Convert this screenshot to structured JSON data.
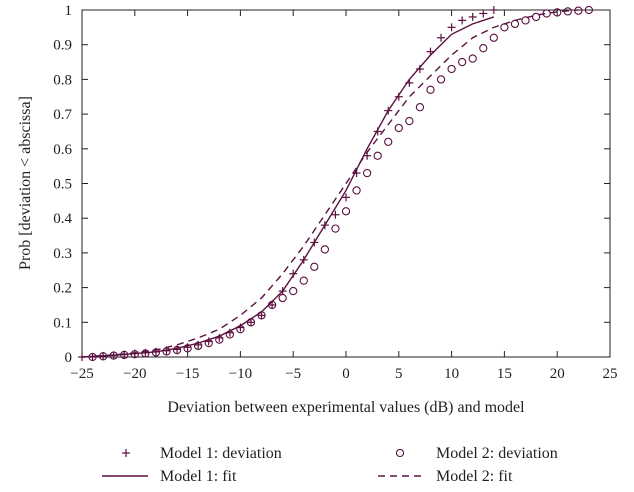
{
  "chart_data": {
    "type": "line",
    "xlabel": "Deviation between experimental values (dB) and model",
    "ylabel": "Prob [deviation < abscissa]",
    "xlim": [
      -25,
      25
    ],
    "ylim": [
      0,
      1
    ],
    "x_ticks": [
      -25,
      -20,
      -15,
      -10,
      -5,
      0,
      5,
      10,
      15,
      20,
      25
    ],
    "y_ticks": [
      0,
      0.1,
      0.2,
      0.3,
      0.4,
      0.5,
      0.6,
      0.7,
      0.8,
      0.9,
      1
    ],
    "grid": false,
    "legend_position": "bottom",
    "line_color": "#5b1040",
    "series": [
      {
        "name": "Model 1: deviation",
        "style": "marker-plus",
        "points": [
          [
            -25,
            0.0
          ],
          [
            -24,
            0.0
          ],
          [
            -23,
            0.003
          ],
          [
            -22,
            0.005
          ],
          [
            -21,
            0.007
          ],
          [
            -20,
            0.01
          ],
          [
            -19,
            0.012
          ],
          [
            -18,
            0.015
          ],
          [
            -17,
            0.018
          ],
          [
            -16,
            0.022
          ],
          [
            -15,
            0.028
          ],
          [
            -14,
            0.035
          ],
          [
            -13,
            0.045
          ],
          [
            -12,
            0.055
          ],
          [
            -11,
            0.07
          ],
          [
            -10,
            0.085
          ],
          [
            -9,
            0.1
          ],
          [
            -8,
            0.12
          ],
          [
            -7,
            0.15
          ],
          [
            -6,
            0.19
          ],
          [
            -5,
            0.24
          ],
          [
            -4,
            0.28
          ],
          [
            -3,
            0.33
          ],
          [
            -2,
            0.38
          ],
          [
            -1,
            0.41
          ],
          [
            0,
            0.46
          ],
          [
            1,
            0.53
          ],
          [
            2,
            0.58
          ],
          [
            3,
            0.65
          ],
          [
            4,
            0.71
          ],
          [
            5,
            0.75
          ],
          [
            6,
            0.79
          ],
          [
            7,
            0.83
          ],
          [
            8,
            0.88
          ],
          [
            9,
            0.92
          ],
          [
            10,
            0.95
          ],
          [
            11,
            0.97
          ],
          [
            12,
            0.98
          ],
          [
            13,
            0.99
          ],
          [
            14,
            1.0
          ]
        ]
      },
      {
        "name": "Model 2: deviation",
        "style": "marker-circle",
        "points": [
          [
            -24,
            0.0
          ],
          [
            -23,
            0.002
          ],
          [
            -22,
            0.004
          ],
          [
            -21,
            0.006
          ],
          [
            -20,
            0.008
          ],
          [
            -19,
            0.01
          ],
          [
            -18,
            0.013
          ],
          [
            -17,
            0.016
          ],
          [
            -16,
            0.02
          ],
          [
            -15,
            0.025
          ],
          [
            -14,
            0.032
          ],
          [
            -13,
            0.04
          ],
          [
            -12,
            0.05
          ],
          [
            -11,
            0.065
          ],
          [
            -10,
            0.08
          ],
          [
            -9,
            0.1
          ],
          [
            -8,
            0.12
          ],
          [
            -7,
            0.15
          ],
          [
            -6,
            0.17
          ],
          [
            -5,
            0.19
          ],
          [
            -4,
            0.22
          ],
          [
            -3,
            0.26
          ],
          [
            -2,
            0.31
          ],
          [
            -1,
            0.37
          ],
          [
            0,
            0.42
          ],
          [
            1,
            0.48
          ],
          [
            2,
            0.53
          ],
          [
            3,
            0.58
          ],
          [
            4,
            0.62
          ],
          [
            5,
            0.66
          ],
          [
            6,
            0.68
          ],
          [
            7,
            0.72
          ],
          [
            8,
            0.77
          ],
          [
            9,
            0.8
          ],
          [
            10,
            0.83
          ],
          [
            11,
            0.85
          ],
          [
            12,
            0.86
          ],
          [
            13,
            0.89
          ],
          [
            14,
            0.92
          ],
          [
            15,
            0.95
          ],
          [
            16,
            0.96
          ],
          [
            17,
            0.97
          ],
          [
            18,
            0.98
          ],
          [
            19,
            0.99
          ],
          [
            20,
            0.993
          ],
          [
            21,
            0.996
          ],
          [
            22,
            0.998
          ],
          [
            23,
            1.0
          ]
        ]
      },
      {
        "name": "Model 1: fit",
        "style": "solid",
        "points": [
          [
            -25,
            0.0
          ],
          [
            -22,
            0.005
          ],
          [
            -20,
            0.01
          ],
          [
            -18,
            0.015
          ],
          [
            -16,
            0.025
          ],
          [
            -14,
            0.04
          ],
          [
            -12,
            0.06
          ],
          [
            -10,
            0.09
          ],
          [
            -8,
            0.13
          ],
          [
            -6,
            0.19
          ],
          [
            -4,
            0.28
          ],
          [
            -2,
            0.38
          ],
          [
            0,
            0.48
          ],
          [
            2,
            0.6
          ],
          [
            4,
            0.71
          ],
          [
            6,
            0.8
          ],
          [
            8,
            0.87
          ],
          [
            10,
            0.93
          ],
          [
            12,
            0.96
          ],
          [
            14,
            0.98
          ]
        ]
      },
      {
        "name": "Model 2: fit",
        "style": "dashed",
        "points": [
          [
            -25,
            0.0
          ],
          [
            -22,
            0.006
          ],
          [
            -20,
            0.012
          ],
          [
            -18,
            0.02
          ],
          [
            -16,
            0.035
          ],
          [
            -14,
            0.055
          ],
          [
            -12,
            0.08
          ],
          [
            -10,
            0.12
          ],
          [
            -8,
            0.17
          ],
          [
            -6,
            0.24
          ],
          [
            -4,
            0.32
          ],
          [
            -2,
            0.41
          ],
          [
            0,
            0.5
          ],
          [
            2,
            0.59
          ],
          [
            4,
            0.67
          ],
          [
            6,
            0.75
          ],
          [
            8,
            0.81
          ],
          [
            10,
            0.87
          ],
          [
            12,
            0.92
          ],
          [
            14,
            0.95
          ],
          [
            16,
            0.97
          ],
          [
            18,
            0.985
          ],
          [
            20,
            0.995
          ],
          [
            22,
            1.0
          ]
        ]
      }
    ]
  }
}
